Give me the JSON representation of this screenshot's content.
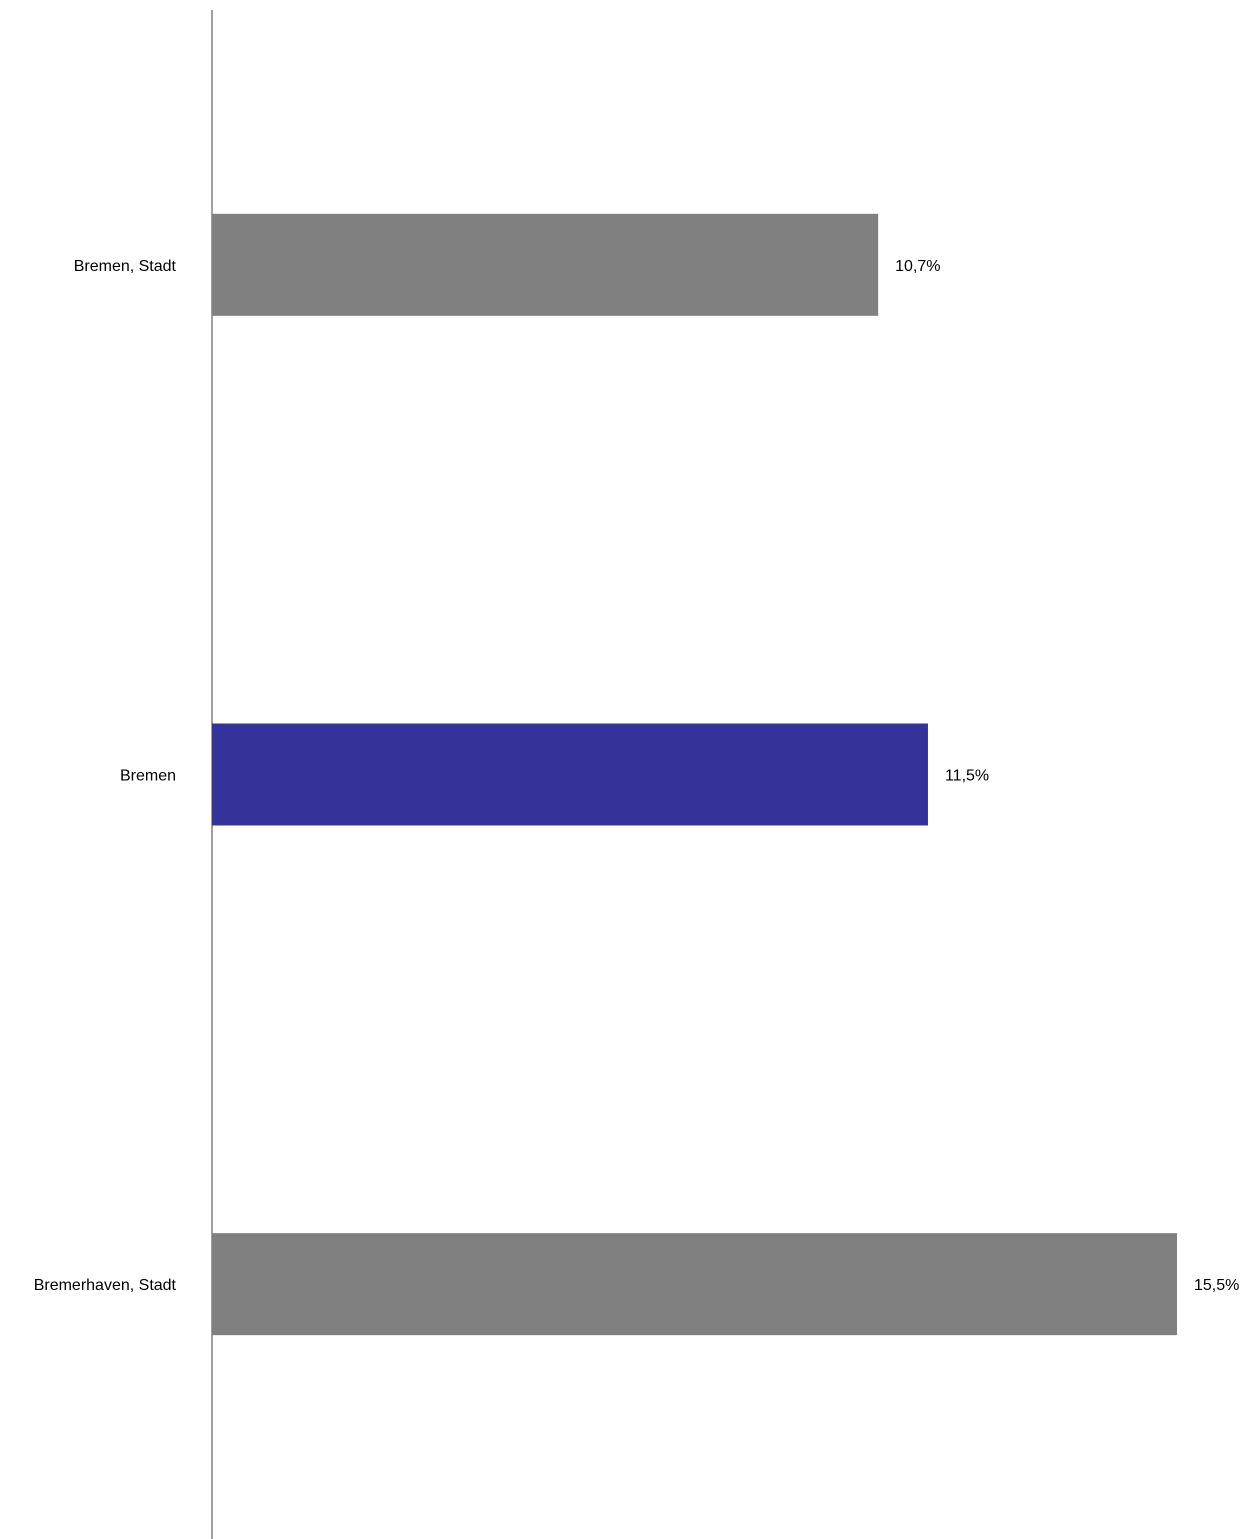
{
  "chart_data": {
    "type": "bar",
    "orientation": "horizontal",
    "categories": [
      "Bremen, Stadt",
      "Bremen",
      "Bremerhaven, Stadt"
    ],
    "values": [
      10.7,
      11.5,
      15.5
    ],
    "value_labels": [
      "10,7%",
      "11,5%",
      "15,5%"
    ],
    "colors": [
      "#808080",
      "#333399",
      "#808080"
    ],
    "xlim": [
      0,
      15.5
    ],
    "grid": false,
    "legend": "none"
  }
}
